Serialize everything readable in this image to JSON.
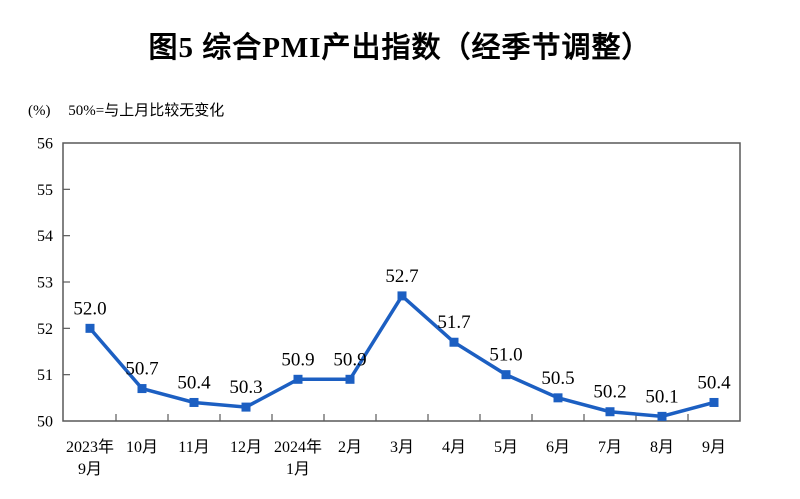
{
  "title": "图5 综合PMI产出指数（经季节调整）",
  "subtitle": {
    "unit": "(%)",
    "note": "50%=与上月比较无变化"
  },
  "chart_data": {
    "type": "line",
    "title": "图5 综合PMI产出指数（经季节调整）",
    "categories": [
      "2023年9月",
      "10月",
      "11月",
      "12月",
      "2024年1月",
      "2月",
      "3月",
      "4月",
      "5月",
      "6月",
      "7月",
      "8月",
      "9月"
    ],
    "category_label_lines": [
      [
        "2023年",
        "9月"
      ],
      [
        "10月"
      ],
      [
        "11月"
      ],
      [
        "12月"
      ],
      [
        "2024年",
        "1月"
      ],
      [
        "2月"
      ],
      [
        "3月"
      ],
      [
        "4月"
      ],
      [
        "5月"
      ],
      [
        "6月"
      ],
      [
        "7月"
      ],
      [
        "8月"
      ],
      [
        "9月"
      ]
    ],
    "values": [
      52.0,
      50.7,
      50.4,
      50.3,
      50.9,
      50.9,
      52.7,
      51.7,
      51.0,
      50.5,
      50.2,
      50.1,
      50.4
    ],
    "data_labels": [
      "52.0",
      "50.7",
      "50.4",
      "50.3",
      "50.9",
      "50.9",
      "52.7",
      "51.7",
      "51.0",
      "50.5",
      "50.2",
      "50.1",
      "50.4"
    ],
    "ylabel": "(%)",
    "ylim": [
      50,
      56
    ],
    "ytick_step": 1,
    "yticks": [
      50,
      51,
      52,
      53,
      54,
      55,
      56
    ],
    "grid": false,
    "legend": "none",
    "line_color": "#1c5fc2",
    "marker": "square",
    "marker_color": "#1c5fc2",
    "axis_color": "#595959",
    "label_color": "#000000"
  }
}
